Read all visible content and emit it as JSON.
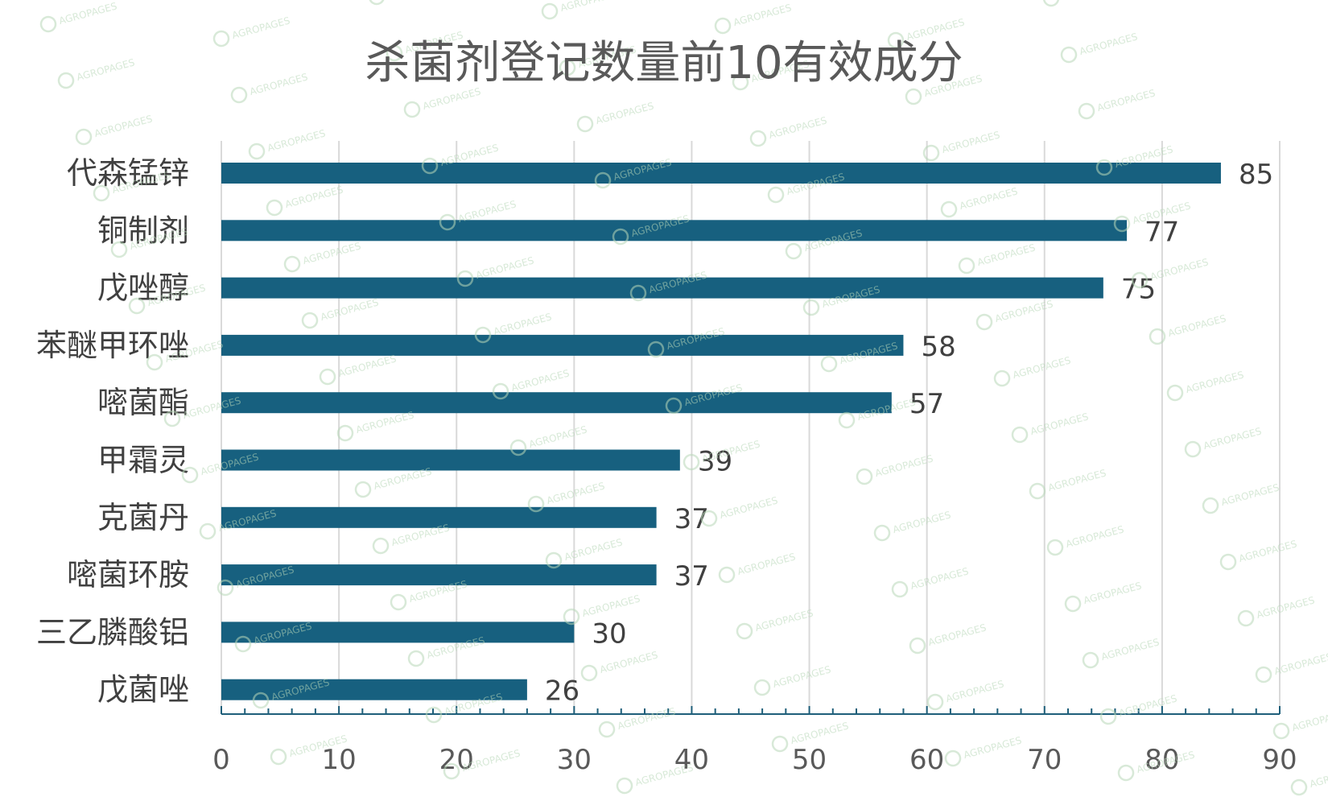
{
  "watermark": {
    "text": "AGROPAGES"
  },
  "chart_data": {
    "type": "bar",
    "orientation": "horizontal",
    "title": "杀菌剂登记数量前10有效成分",
    "categories": [
      "代森锰锌",
      "铜制剂",
      "戊唑醇",
      "苯醚甲环唑",
      "嘧菌酯",
      "甲霜灵",
      "克菌丹",
      "嘧菌环胺",
      "三乙膦酸铝",
      "戊菌唑"
    ],
    "values": [
      85,
      77,
      75,
      58,
      57,
      39,
      37,
      37,
      30,
      26
    ],
    "xlim": [
      0,
      90
    ],
    "x_ticks": [
      0,
      10,
      20,
      30,
      40,
      50,
      60,
      70,
      80,
      90
    ],
    "data_labels": true,
    "grid": "vertical",
    "legend": "none",
    "colors": {
      "bar": "#17607f",
      "grid": "#d9d9d9",
      "axis": "#1f5f7a"
    }
  }
}
